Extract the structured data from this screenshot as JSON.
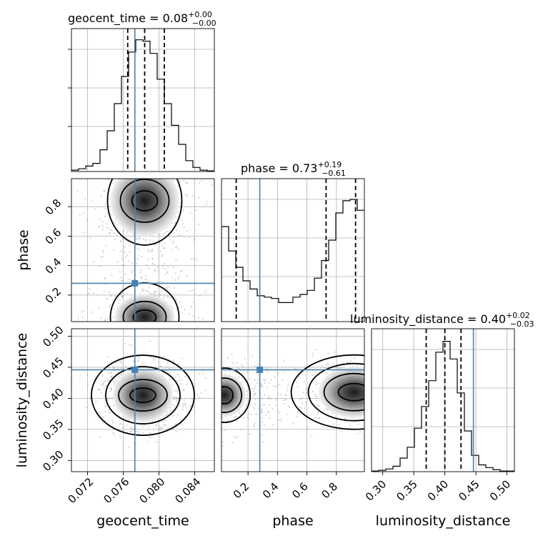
{
  "chart_data": {
    "type": "corner",
    "parameters": [
      "geocent_time",
      "phase",
      "luminosity_distance"
    ],
    "axis_labels": {
      "geocent_time": "geocent_time",
      "phase": "phase",
      "luminosity_distance": "luminosity_distance"
    },
    "ranges": {
      "geocent_time": [
        0.0702,
        0.0862
      ],
      "phase": [
        0.02,
        0.99
      ],
      "luminosity_distance": [
        0.282,
        0.512
      ]
    },
    "ticks": {
      "geocent_time": [
        "0.072",
        "0.076",
        "0.080",
        "0.084"
      ],
      "phase": [
        "0.2",
        "0.4",
        "0.6",
        "0.8"
      ],
      "luminosity_distance": [
        "0.30",
        "0.35",
        "0.40",
        "0.45",
        "0.50"
      ]
    },
    "truths": {
      "geocent_time": 0.0773,
      "phase": 0.28,
      "luminosity_distance": 0.446
    },
    "titles": {
      "geocent_time": {
        "text": "geocent_time = 0.08",
        "plus": "+0.00",
        "minus": "−0.00"
      },
      "phase": {
        "text": "phase = 0.73",
        "plus": "+0.19",
        "minus": "−0.61"
      },
      "luminosity_distance": {
        "text": "luminosity_distance = 0.40",
        "plus": "+0.02",
        "minus": "−0.03"
      }
    },
    "quantiles": {
      "geocent_time": [
        0.0765,
        0.0784,
        0.0806
      ],
      "phase": [
        0.12,
        0.73,
        0.93
      ],
      "luminosity_distance": [
        0.37,
        0.4,
        0.426
      ]
    },
    "histograms": {
      "geocent_time": {
        "edges_start": 0.0702,
        "bin_width": 0.0008,
        "counts": [
          0.01,
          0.02,
          0.04,
          0.06,
          0.16,
          0.3,
          0.5,
          0.7,
          0.88,
          0.97,
          0.96,
          0.87,
          0.68,
          0.5,
          0.34,
          0.2,
          0.08,
          0.03,
          0.01,
          0.005
        ]
      },
      "phase": {
        "edges_start": 0.02,
        "bin_width": 0.0485,
        "counts": [
          0.7,
          0.52,
          0.4,
          0.3,
          0.24,
          0.19,
          0.18,
          0.17,
          0.14,
          0.14,
          0.18,
          0.2,
          0.23,
          0.32,
          0.45,
          0.6,
          0.8,
          0.89,
          0.9,
          0.82
        ]
      },
      "luminosity_distance": {
        "edges_start": 0.282,
        "bin_width": 0.0115,
        "counts": [
          0.005,
          0.01,
          0.02,
          0.04,
          0.1,
          0.18,
          0.32,
          0.48,
          0.67,
          0.88,
          0.96,
          0.83,
          0.58,
          0.3,
          0.12,
          0.05,
          0.03,
          0.015,
          0.005,
          0.005
        ]
      }
    },
    "contours_2d": {
      "phase_vs_geocent_time": {
        "peaks": [
          {
            "x": 0.0784,
            "y": 0.84
          },
          {
            "x": 0.0784,
            "y": 0.05
          }
        ]
      },
      "luminosity_distance_vs_geocent_time": {
        "peaks": [
          {
            "x": 0.0782,
            "y": 0.405
          }
        ]
      },
      "luminosity_distance_vs_phase": {
        "peaks": [
          {
            "x": 0.92,
            "y": 0.41
          },
          {
            "x": 0.04,
            "y": 0.405
          }
        ]
      }
    }
  }
}
